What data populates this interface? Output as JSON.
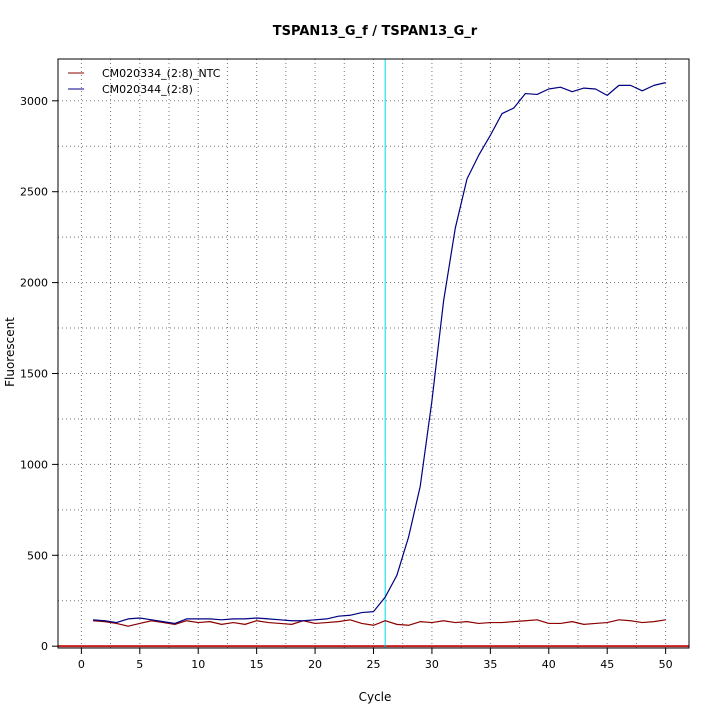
{
  "chart_data": {
    "type": "line",
    "title": "TSPAN13_G_f / TSPAN13_G_r",
    "xlabel": "Cycle",
    "ylabel": "Fluorescent",
    "xlim": [
      -2,
      52
    ],
    "ylim": [
      -10,
      3230
    ],
    "x_ticks": [
      0,
      5,
      10,
      15,
      20,
      25,
      30,
      35,
      40,
      45,
      50
    ],
    "y_ticks": [
      0,
      500,
      1000,
      1500,
      2000,
      2500,
      3000
    ],
    "grid": true,
    "legend_position": "top-left",
    "threshold_cycle": 26,
    "baseline_value": 0,
    "colors": {
      "ntc": "#8b0000",
      "sample": "#000080",
      "threshold": "#00d8e8",
      "baseline": "#c81e1e",
      "grid": "#777777"
    },
    "x": [
      1,
      2,
      3,
      4,
      5,
      6,
      7,
      8,
      9,
      10,
      11,
      12,
      13,
      14,
      15,
      16,
      17,
      18,
      19,
      20,
      21,
      22,
      23,
      24,
      25,
      26,
      27,
      28,
      29,
      30,
      31,
      32,
      33,
      34,
      35,
      36,
      37,
      38,
      39,
      40,
      41,
      42,
      43,
      44,
      45,
      46,
      47,
      48,
      49,
      50
    ],
    "series": [
      {
        "name": "CM020334_(2:8)_NTC",
        "color": "#8b0000",
        "values": [
          140,
          135,
          125,
          110,
          125,
          140,
          130,
          120,
          140,
          130,
          135,
          120,
          130,
          120,
          140,
          130,
          125,
          120,
          140,
          125,
          130,
          135,
          145,
          125,
          115,
          140,
          120,
          115,
          135,
          130,
          140,
          130,
          135,
          125,
          130,
          130,
          135,
          140,
          145,
          125,
          125,
          135,
          120,
          125,
          130,
          145,
          140,
          130,
          135,
          145
        ]
      },
      {
        "name": "CM020344_(2:8)",
        "color": "#000080",
        "values": [
          145,
          140,
          130,
          150,
          155,
          145,
          135,
          125,
          150,
          150,
          150,
          145,
          150,
          150,
          155,
          150,
          145,
          140,
          140,
          145,
          150,
          165,
          170,
          185,
          190,
          270,
          390,
          600,
          880,
          1350,
          1900,
          2300,
          2570,
          2700,
          2810,
          2930,
          2960,
          3040,
          3035,
          3065,
          3075,
          3050,
          3070,
          3065,
          3030,
          3085,
          3085,
          3055,
          3085,
          3100
        ]
      }
    ]
  }
}
